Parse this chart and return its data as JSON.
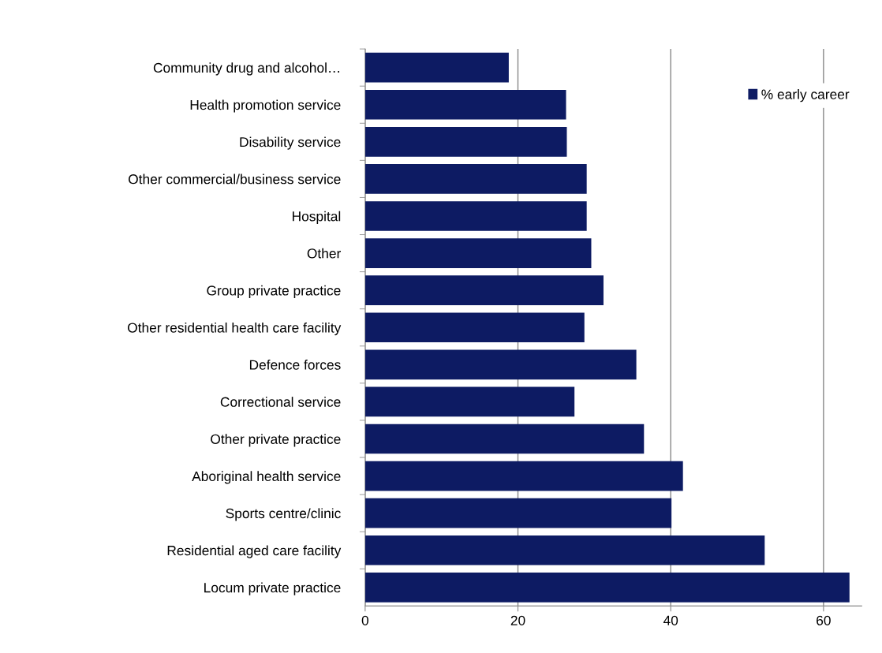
{
  "chart_data": {
    "type": "bar",
    "orientation": "horizontal",
    "categories": [
      "Community drug and alcohol…",
      "Health promotion service",
      "Disability service",
      "Other commercial/business service",
      "Hospital",
      "Other",
      "Group private practice",
      "Other residential health care facility",
      "Defence forces",
      "Correctional service",
      "Other private practice",
      "Aboriginal health service",
      "Sports centre/clinic",
      "Residential aged care facility",
      "Locum private practice"
    ],
    "series": [
      {
        "name": "% early career",
        "color": "#0d1b63",
        "values": [
          18.8,
          26.3,
          26.4,
          29.0,
          29.0,
          29.6,
          31.2,
          28.7,
          35.5,
          27.4,
          36.5,
          41.6,
          40.1,
          52.3,
          63.4
        ]
      }
    ],
    "xlim": [
      0,
      65
    ],
    "xticks": [
      0,
      20,
      40,
      60
    ],
    "grid": "x",
    "legend": "top right"
  }
}
